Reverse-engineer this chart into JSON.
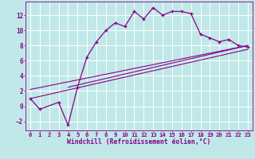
{
  "xlabel": "Windchill (Refroidissement éolien,°C)",
  "bg_color": "#c0e8e8",
  "grid_color": "#ffffff",
  "line_color": "#880088",
  "spine_color": "#880088",
  "ylim": [
    -3.2,
    13.8
  ],
  "xlim": [
    -0.5,
    23.5
  ],
  "yticks": [
    -2,
    0,
    2,
    4,
    6,
    8,
    10,
    12
  ],
  "xticks": [
    0,
    1,
    2,
    3,
    4,
    5,
    6,
    7,
    8,
    9,
    10,
    11,
    12,
    13,
    14,
    15,
    16,
    17,
    18,
    19,
    20,
    21,
    22,
    23
  ],
  "curve_x": [
    0,
    1,
    3,
    4,
    5,
    6,
    7,
    8,
    9,
    10,
    11,
    12,
    13,
    14,
    15,
    16,
    17,
    18,
    19,
    20,
    21,
    22,
    23
  ],
  "curve_y": [
    1.0,
    -0.4,
    0.5,
    -2.5,
    2.5,
    6.5,
    8.5,
    10.0,
    11.0,
    10.5,
    12.5,
    11.5,
    13.0,
    12.0,
    12.5,
    12.5,
    12.2,
    9.5,
    9.0,
    8.5,
    8.8,
    8.0,
    7.8
  ],
  "line1_x": [
    0,
    23
  ],
  "line1_y": [
    1.0,
    7.5
  ],
  "line2_x": [
    0,
    23
  ],
  "line2_y": [
    2.2,
    8.0
  ],
  "line3_x": [
    4,
    23
  ],
  "line3_y": [
    2.5,
    8.0
  ],
  "tick_fontsize": 5.2,
  "xlabel_fontsize": 5.8
}
